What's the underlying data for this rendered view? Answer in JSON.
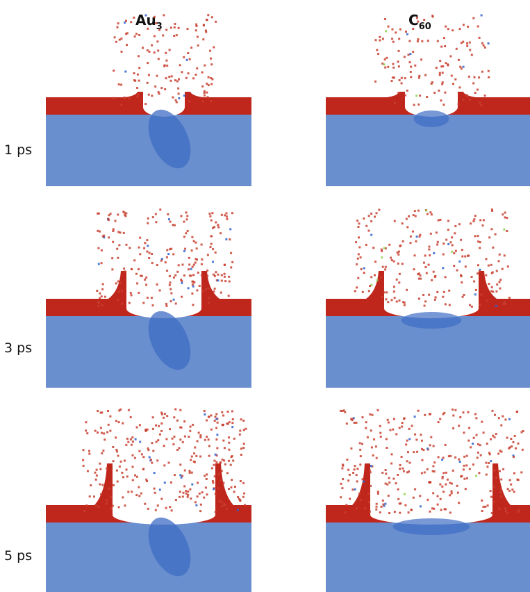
{
  "columns": [
    {
      "label": "Au",
      "subscript": "3"
    },
    {
      "label": "C",
      "subscript": "60"
    }
  ],
  "rows": [
    "1 ps",
    "3 ps",
    "5 ps"
  ]
}
